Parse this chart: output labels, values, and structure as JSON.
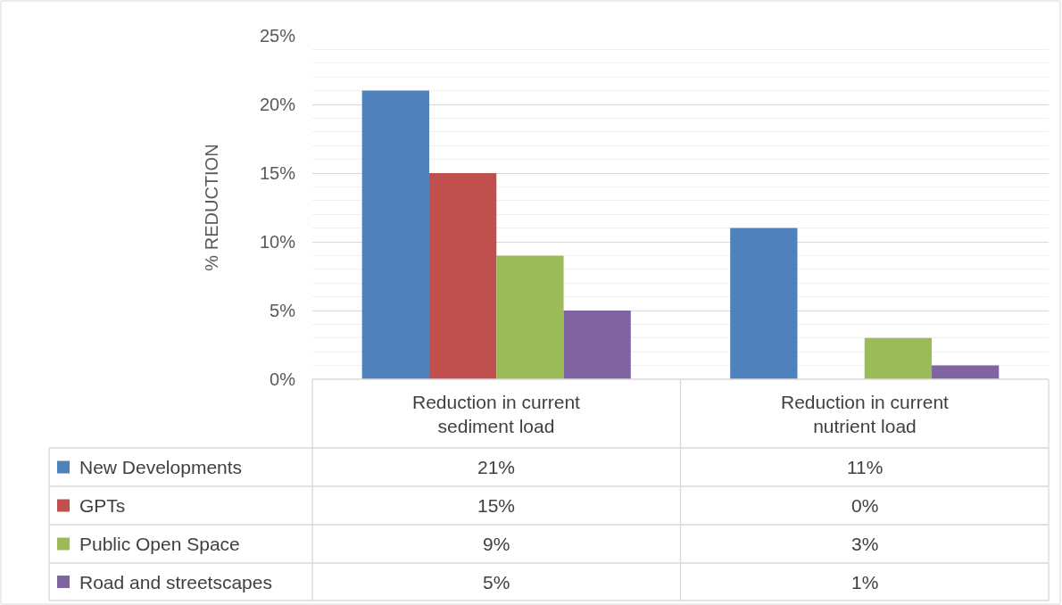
{
  "chart_data": {
    "type": "bar",
    "ylabel": "% REDUCTION",
    "categories": [
      "Reduction in current sediment load",
      "Reduction in current nutrient load"
    ],
    "series": [
      {
        "name": "New Developments",
        "color": "#4f81bd",
        "values": [
          21,
          11
        ],
        "value_labels": [
          "21%",
          "11%"
        ]
      },
      {
        "name": "GPTs",
        "color": "#c0504d",
        "values": [
          15,
          0
        ],
        "value_labels": [
          "15%",
          "0%"
        ]
      },
      {
        "name": "Public Open Space",
        "color": "#9bbb59",
        "values": [
          9,
          3
        ],
        "value_labels": [
          "9%",
          "3%"
        ]
      },
      {
        "name": "Road and streetscapes",
        "color": "#8064a2",
        "values": [
          5,
          1
        ],
        "value_labels": [
          "5%",
          "1%"
        ]
      }
    ],
    "ylim": [
      0,
      25
    ],
    "yticks": [
      {
        "value": 0,
        "label": "0%"
      },
      {
        "value": 5,
        "label": "5%"
      },
      {
        "value": 10,
        "label": "10%"
      },
      {
        "value": 15,
        "label": "15%"
      },
      {
        "value": 20,
        "label": "20%"
      },
      {
        "value": 25,
        "label": "25%"
      }
    ],
    "grid": "y",
    "legend": "bottom"
  }
}
